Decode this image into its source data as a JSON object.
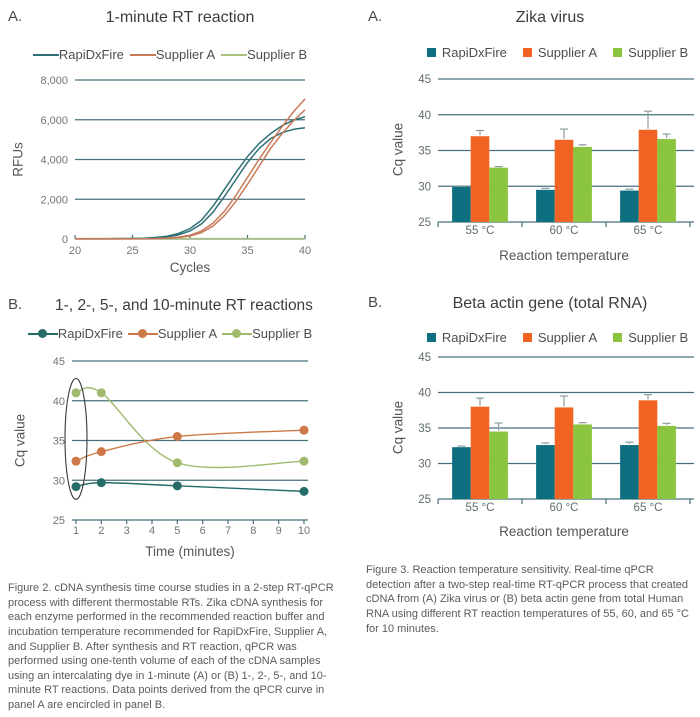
{
  "panel_labels": {
    "rt_curve": "A.",
    "zika": "A.",
    "timecourse": "B.",
    "beta_actin": "B."
  },
  "colors": {
    "grid": "#47707c",
    "error_bar": "#8d9ea1",
    "bar_teal": "#0e6f80",
    "bar_orange": "#f16322",
    "bar_green": "#8bc53f"
  },
  "chart_data": [
    {
      "id": "rt_curve",
      "type": "line",
      "title": "1-minute RT reaction",
      "xlabel": "Cycles",
      "ylabel": "RFUs",
      "xlim": [
        20,
        40
      ],
      "xticks": [
        20,
        25,
        30,
        35,
        40
      ],
      "ylim": [
        0,
        8000
      ],
      "yticks": [
        0,
        2000,
        4000,
        6000,
        8000
      ],
      "ytick_labels": [
        "0",
        "2,000",
        "4,000",
        "6,000",
        "8,000"
      ],
      "grid": true,
      "legend_position": "top",
      "series": [
        {
          "name": "Supplier B",
          "color": "#a9bf7a",
          "curves": [
            [
              [
                20,
                20
              ],
              [
                40,
                20
              ]
            ]
          ]
        },
        {
          "name": "RapiDxFire",
          "color": "#2e6f75",
          "curves": [
            [
              [
                20,
                10
              ],
              [
                23,
                15
              ],
              [
                25,
                25
              ],
              [
                26,
                40
              ],
              [
                27,
                75
              ],
              [
                28,
                140
              ],
              [
                29,
                280
              ],
              [
                30,
                520
              ],
              [
                31,
                950
              ],
              [
                32,
                1650
              ],
              [
                33,
                2500
              ],
              [
                34,
                3350
              ],
              [
                35,
                4150
              ],
              [
                36,
                4800
              ],
              [
                37,
                5300
              ],
              [
                38,
                5700
              ],
              [
                39,
                5980
              ],
              [
                40,
                6150
              ]
            ],
            [
              [
                20,
                10
              ],
              [
                25,
                18
              ],
              [
                26,
                30
              ],
              [
                27,
                55
              ],
              [
                28,
                105
              ],
              [
                29,
                210
              ],
              [
                30,
                400
              ],
              [
                31,
                760
              ],
              [
                32,
                1350
              ],
              [
                33,
                2150
              ],
              [
                34,
                3000
              ],
              [
                35,
                3850
              ],
              [
                36,
                4550
              ],
              [
                37,
                5050
              ],
              [
                38,
                5350
              ],
              [
                39,
                5520
              ],
              [
                40,
                5600
              ]
            ]
          ]
        },
        {
          "name": "Supplier A",
          "color": "#c87a58",
          "curves": [
            [
              [
                20,
                5
              ],
              [
                26,
                10
              ],
              [
                27,
                20
              ],
              [
                28,
                45
              ],
              [
                29,
                95
              ],
              [
                30,
                190
              ],
              [
                31,
                400
              ],
              [
                32,
                800
              ],
              [
                33,
                1400
              ],
              [
                34,
                2200
              ],
              [
                35,
                3100
              ],
              [
                36,
                4000
              ],
              [
                37,
                4850
              ],
              [
                38,
                5650
              ],
              [
                39,
                6400
              ],
              [
                40,
                7050
              ]
            ],
            [
              [
                20,
                5
              ],
              [
                27,
                15
              ],
              [
                28,
                35
              ],
              [
                29,
                75
              ],
              [
                30,
                150
              ],
              [
                31,
                320
              ],
              [
                32,
                650
              ],
              [
                33,
                1180
              ],
              [
                34,
                1900
              ],
              [
                35,
                2750
              ],
              [
                36,
                3650
              ],
              [
                37,
                4550
              ],
              [
                38,
                5300
              ],
              [
                39,
                5950
              ],
              [
                40,
                6500
              ]
            ]
          ]
        }
      ],
      "legend_order": [
        "RapiDxFire",
        "Supplier A",
        "Supplier B"
      ]
    },
    {
      "id": "zika",
      "type": "bar",
      "title": "Zika virus",
      "xlabel": "Reaction temperature",
      "ylabel": "Cq value",
      "categories": [
        "55 °C",
        "60 °C",
        "65 °C"
      ],
      "ylim": [
        25,
        45
      ],
      "yticks": [
        25,
        30,
        35,
        40,
        45
      ],
      "grid": true,
      "legend_position": "top",
      "series": [
        {
          "name": "RapiDxFire",
          "color": "#0e6f80",
          "values": [
            29.9,
            29.5,
            29.4
          ],
          "errors": [
            0.15,
            0.2,
            0.2
          ]
        },
        {
          "name": "Supplier A",
          "color": "#f16322",
          "values": [
            37.0,
            36.5,
            37.9
          ],
          "errors": [
            0.8,
            1.5,
            2.6
          ]
        },
        {
          "name": "Supplier B",
          "color": "#8bc53f",
          "values": [
            32.6,
            35.5,
            36.6
          ],
          "errors": [
            0.15,
            0.3,
            0.7
          ]
        }
      ]
    },
    {
      "id": "timecourse",
      "type": "line",
      "title": "1-, 2-, 5-, and 10-minute RT reactions",
      "xlabel": "Time (minutes)",
      "ylabel": "Cq value",
      "xlim": [
        1,
        10
      ],
      "xticks": [
        1,
        2,
        3,
        4,
        5,
        6,
        7,
        8,
        9,
        10
      ],
      "ylim": [
        25,
        45
      ],
      "yticks": [
        25,
        30,
        35,
        40,
        45
      ],
      "grid": true,
      "legend_position": "top",
      "series": [
        {
          "name": "Supplier B",
          "color": "#a0bb6e",
          "marker": true,
          "points": [
            [
              1,
              41.0
            ],
            [
              2,
              41.0
            ],
            [
              5,
              32.2
            ],
            [
              10,
              32.4
            ]
          ]
        },
        {
          "name": "Supplier A",
          "color": "#cd7847",
          "marker": true,
          "points": [
            [
              1,
              32.4
            ],
            [
              2,
              33.6
            ],
            [
              5,
              35.5
            ],
            [
              10,
              36.3
            ]
          ]
        },
        {
          "name": "RapiDxFire",
          "color": "#256b68",
          "marker": true,
          "points": [
            [
              1,
              29.2
            ],
            [
              2,
              29.7
            ],
            [
              5,
              29.3
            ],
            [
              10,
              28.6
            ]
          ]
        }
      ],
      "annotation": {
        "shape": "ellipse",
        "note": "1-minute points encircled",
        "x": 1,
        "y_top": 42.8,
        "y_bottom": 27.6
      },
      "legend_order": [
        "RapiDxFire",
        "Supplier A",
        "Supplier B"
      ]
    },
    {
      "id": "beta_actin",
      "type": "bar",
      "title": "Beta actin gene (total RNA)",
      "xlabel": "Reaction temperature",
      "ylabel": "Cq value",
      "categories": [
        "55 °C",
        "60 °C",
        "65 °C"
      ],
      "ylim": [
        25,
        45
      ],
      "yticks": [
        25,
        30,
        35,
        40,
        45
      ],
      "grid": true,
      "legend_position": "top",
      "series": [
        {
          "name": "RapiDxFire",
          "color": "#0e6f80",
          "values": [
            32.3,
            32.6,
            32.6
          ],
          "errors": [
            0.15,
            0.3,
            0.4
          ]
        },
        {
          "name": "Supplier A",
          "color": "#f16322",
          "values": [
            38.0,
            37.9,
            38.9
          ],
          "errors": [
            1.2,
            1.6,
            0.8
          ]
        },
        {
          "name": "Supplier B",
          "color": "#8bc53f",
          "values": [
            34.5,
            35.5,
            35.3
          ],
          "errors": [
            1.2,
            0.25,
            0.35
          ]
        }
      ]
    }
  ],
  "captions": {
    "figure2": "Figure 2. cDNA synthesis time course studies in a 2-step RT-qPCR process with different thermostable RTs. Zika cDNA synthesis for each enzyme performed in the recommended reaction buffer and incubation temperature recommended for RapiDxFire, Supplier A, and Supplier B. After synthesis and RT reaction, qPCR was performed using one-tenth volume of each of the cDNA samples using an intercalating dye in 1-minute (A) or (B) 1-, 2-, 5-, and 10-minute RT reactions. Data points derived from the qPCR curve in panel A are encircled in panel B.",
    "figure3": "Figure 3. Reaction temperature sensitivity. Real-time qPCR detection after a two-step real-time RT-qPCR process that created cDNA from (A) Zika virus or (B) beta actin gene from total Human RNA using different RT reaction temperatures of 55, 60, and 65 °C for 10 minutes."
  }
}
